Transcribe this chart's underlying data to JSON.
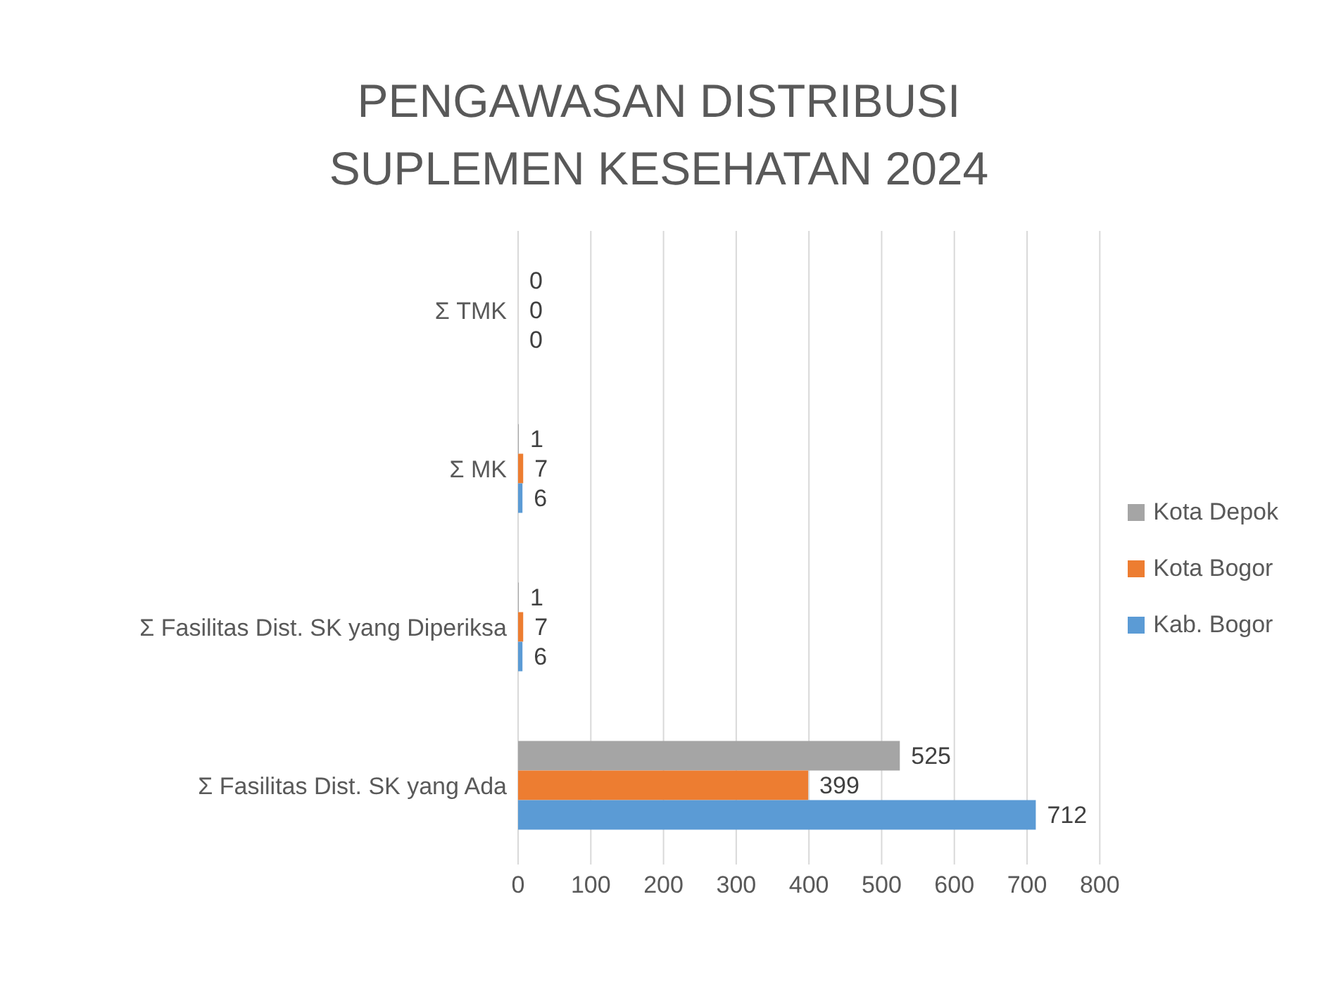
{
  "chart_data": {
    "type": "bar",
    "orientation": "horizontal",
    "title": "PENGAWASAN DISTRIBUSI SUPLEMEN KESEHATAN 2024",
    "categories": [
      "Σ TMK",
      "Σ MK",
      "Σ Fasilitas Dist. SK yang Diperiksa",
      "Σ Fasilitas Dist. SK yang Ada"
    ],
    "series": [
      {
        "name": "Kab. Bogor",
        "color": "#5b9bd5",
        "values": [
          0,
          6,
          6,
          712
        ]
      },
      {
        "name": "Kota Bogor",
        "color": "#ed7d31",
        "values": [
          0,
          7,
          7,
          399
        ]
      },
      {
        "name": "Kota Depok",
        "color": "#a5a5a5",
        "values": [
          0,
          1,
          1,
          525
        ]
      }
    ],
    "xlim": [
      0,
      800
    ],
    "xticks": [
      0,
      100,
      200,
      300,
      400,
      500,
      600,
      700,
      800
    ],
    "grid": "x",
    "legend": "right",
    "data_labels": true
  }
}
